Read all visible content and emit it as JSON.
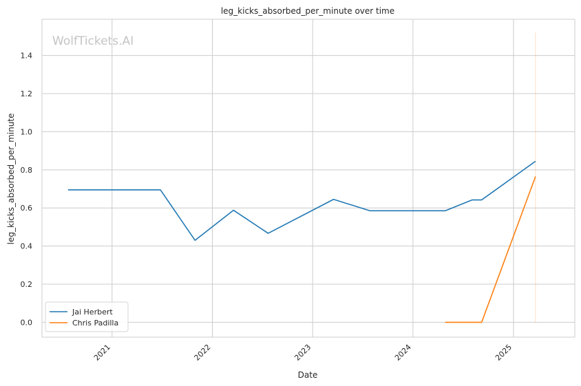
{
  "chart_data": {
    "type": "line",
    "title": "leg_kicks_absorbed_per_minute over time",
    "xlabel": "Date",
    "ylabel": "leg_kicks_absorbed_per_minute",
    "watermark": "WolfTickets.AI",
    "xlim": [
      "2020-04-21",
      "2025-08-12"
    ],
    "ylim": [
      -0.078,
      1.59
    ],
    "x_ticks": [
      "2021-01-01",
      "2022-01-01",
      "2023-01-01",
      "2024-01-01",
      "2025-01-01"
    ],
    "x_tick_labels": [
      "2021",
      "2022",
      "2023",
      "2024",
      "2025"
    ],
    "y_ticks": [
      0.0,
      0.2,
      0.4,
      0.6,
      0.8,
      1.0,
      1.2,
      1.4
    ],
    "y_tick_labels": [
      "0.0",
      "0.2",
      "0.4",
      "0.6",
      "0.8",
      "1.0",
      "1.2",
      "1.4"
    ],
    "grid": true,
    "legend_position": "lower-left",
    "series": [
      {
        "name": "Jai Herbert",
        "color": "#1f77b4",
        "points": [
          [
            "2020-07-25",
            0.695
          ],
          [
            "2021-06-26",
            0.695
          ],
          [
            "2021-10-30",
            0.43
          ],
          [
            "2022-03-19",
            0.588
          ],
          [
            "2022-07-23",
            0.467
          ],
          [
            "2023-03-18",
            0.645
          ],
          [
            "2023-07-29",
            0.585
          ],
          [
            "2024-04-27",
            0.585
          ],
          [
            "2024-08-03",
            0.642
          ],
          [
            "2024-09-07",
            0.642
          ],
          [
            "2025-03-22",
            0.845
          ]
        ]
      },
      {
        "name": "Chris Padilla",
        "color": "#ff7f0e",
        "points": [
          [
            "2024-04-27",
            0.0
          ],
          [
            "2024-09-07",
            0.0
          ],
          [
            "2025-03-22",
            0.765
          ]
        ]
      }
    ],
    "vertical_marker": {
      "date": "2025-03-22",
      "y_range": [
        0.0,
        1.52
      ],
      "color": "#ff7f0e"
    }
  }
}
